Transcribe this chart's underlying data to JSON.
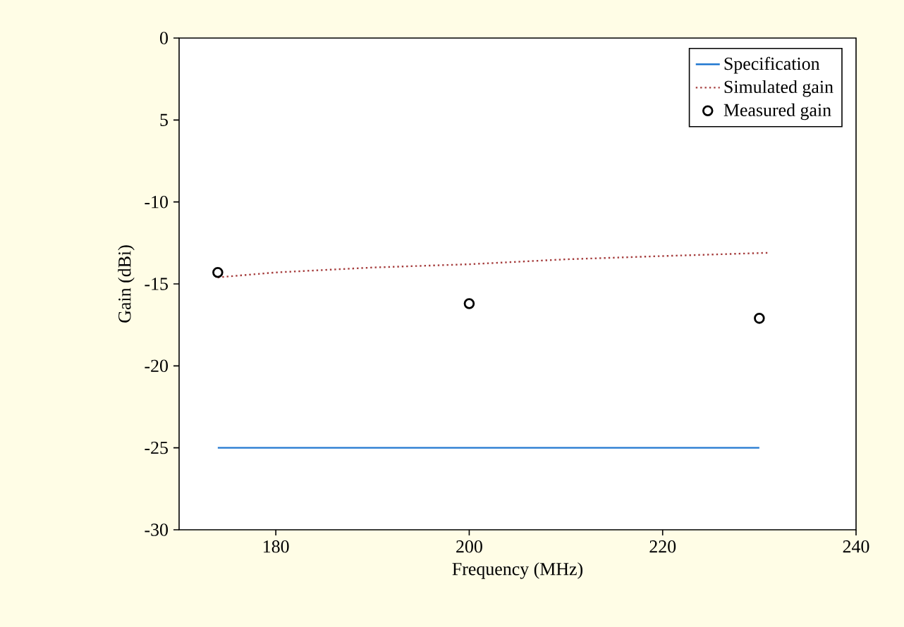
{
  "chart_data": {
    "type": "line",
    "xlabel": "Frequency (MHz)",
    "ylabel": "Gain (dBi)",
    "xlim": [
      170,
      240
    ],
    "ylim": [
      -30,
      0
    ],
    "xticks": [
      180,
      200,
      220,
      240
    ],
    "yticks": [
      -30,
      -25,
      -20,
      -15,
      -10,
      {
        "value": -5,
        "label": "5"
      },
      0
    ],
    "legend": "top right",
    "grid": false,
    "series": [
      {
        "name": "Specification",
        "line_style": "solid",
        "marker": "none",
        "color": "#1f77d0",
        "x": [
          174,
          230
        ],
        "values": [
          -25,
          -25
        ]
      },
      {
        "name": "Simulated gain",
        "line_style": "dotted",
        "marker": "none",
        "color": "#a53c3c",
        "x": [
          174,
          180,
          190,
          200,
          210,
          220,
          231
        ],
        "values": [
          -14.6,
          -14.3,
          -14.0,
          -13.8,
          -13.5,
          -13.3,
          -13.1
        ]
      },
      {
        "name": "Measured gain",
        "type": "scatter",
        "marker": "circle",
        "color": "#000000",
        "x": [
          174,
          200,
          230
        ],
        "values": [
          -14.3,
          -16.2,
          -17.1
        ]
      }
    ]
  }
}
